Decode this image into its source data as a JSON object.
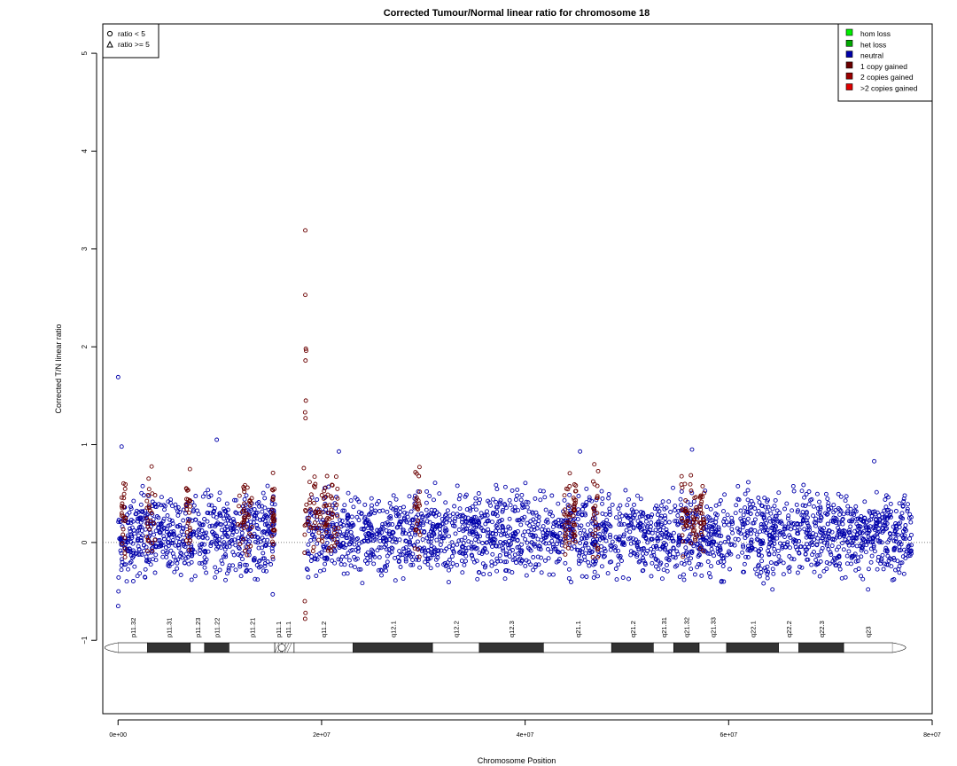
{
  "chart_data": {
    "type": "scatter",
    "title": "Corrected Tumour/Normal linear ratio for chromosome  18",
    "xlabel": "Chromosome Position",
    "ylabel": "Corrected T/N linear ratio",
    "xlim": [
      -1500000,
      80000000
    ],
    "ylim": [
      -1.75,
      5.3
    ],
    "xticks": [
      0,
      20000000,
      40000000,
      60000000,
      80000000
    ],
    "xtick_labels": [
      "0e+00",
      "2e+07",
      "4e+07",
      "6e+07",
      "8e+07"
    ],
    "yticks": [
      -1,
      0,
      1,
      2,
      3,
      4,
      5
    ],
    "ytick_labels": [
      "−1",
      "0",
      "1",
      "2",
      "3",
      "4",
      "5"
    ],
    "reference_line": 0,
    "grid": false,
    "shape_legend": {
      "placement": "top-left",
      "entries": [
        {
          "shape": "circle",
          "label": "ratio < 5"
        },
        {
          "shape": "triangle",
          "label": "ratio >= 5"
        }
      ]
    },
    "legend": {
      "placement": "top-right",
      "entries": [
        {
          "label": "hom loss",
          "color": "#00ee00"
        },
        {
          "label": "het loss",
          "color": "#00a800"
        },
        {
          "label": "neutral",
          "color": "#0000aa"
        },
        {
          "label": "1 copy gained",
          "color": "#6b0000"
        },
        {
          "label": "2 copies gained",
          "color": "#9b0000"
        },
        {
          "label": ">2 copies gained",
          "color": "#e00000"
        }
      ]
    },
    "data_range": [
      0,
      78000000
    ],
    "centromere_gap": [
      15400000,
      18500000
    ],
    "series": [
      {
        "name": "neutral",
        "color": "#0000aa",
        "band_center": 0.08,
        "band_spread": 0.2,
        "outliers": [
          [
            10000,
            1.69
          ],
          [
            350000,
            0.98
          ],
          [
            9700000,
            1.05
          ],
          [
            21700000,
            0.93
          ],
          [
            45400000,
            0.93
          ],
          [
            56400000,
            0.95
          ],
          [
            74300000,
            0.83
          ],
          [
            10000,
            -0.65
          ],
          [
            40000,
            -0.5
          ],
          [
            15200000,
            -0.53
          ],
          [
            64300000,
            -0.48
          ],
          [
            73700000,
            -0.48
          ]
        ]
      },
      {
        "name": "1 copy gained",
        "color": "#6b0000",
        "segments": [
          [
            350000,
            750000,
            0.9
          ],
          [
            2800000,
            3700000,
            0.9
          ],
          [
            6700000,
            7100000,
            0.75
          ],
          [
            11700000,
            13200000,
            0.85
          ],
          [
            15100000,
            15400000,
            0.8
          ],
          [
            18200000,
            21700000,
            0.9
          ],
          [
            29100000,
            29700000,
            0.85
          ],
          [
            43700000,
            44400000,
            0.8
          ],
          [
            44700000,
            45000000,
            0.7
          ],
          [
            46600000,
            47200000,
            0.85
          ],
          [
            55300000,
            56000000,
            0.85
          ],
          [
            56200000,
            56900000,
            0.8
          ],
          [
            57200000,
            57600000,
            0.8
          ]
        ],
        "highlights": [
          [
            18400000,
            3.19
          ],
          [
            18400000,
            2.53
          ],
          [
            18450000,
            1.98
          ],
          [
            18480000,
            1.96
          ],
          [
            18420000,
            1.86
          ],
          [
            18450000,
            1.45
          ],
          [
            18380000,
            1.33
          ],
          [
            18420000,
            1.27
          ],
          [
            18380000,
            -0.78
          ],
          [
            18420000,
            -0.72
          ],
          [
            18350000,
            -0.6
          ]
        ]
      }
    ],
    "ideogram": {
      "bands": [
        {
          "label": "p11.32",
          "start": 0,
          "end": 2900000,
          "stain": "gneg"
        },
        {
          "label": "p11.31",
          "start": 2900000,
          "end": 7100000,
          "stain": "gpos"
        },
        {
          "label": "p11.23",
          "start": 7100000,
          "end": 8500000,
          "stain": "gneg"
        },
        {
          "label": "p11.22",
          "start": 8500000,
          "end": 10900000,
          "stain": "gpos"
        },
        {
          "label": "p11.21",
          "start": 10900000,
          "end": 15400000,
          "stain": "gneg"
        },
        {
          "label": "p11.1",
          "start": 15400000,
          "end": 16100000,
          "stain": "acen"
        },
        {
          "label": "q11.1",
          "start": 16100000,
          "end": 17300000,
          "stain": "acen"
        },
        {
          "label": "q11.2",
          "start": 17300000,
          "end": 23100000,
          "stain": "gneg"
        },
        {
          "label": "q12.1",
          "start": 23100000,
          "end": 30900000,
          "stain": "gpos"
        },
        {
          "label": "q12.2",
          "start": 30900000,
          "end": 35500000,
          "stain": "gneg"
        },
        {
          "label": "q12.3",
          "start": 35500000,
          "end": 41800000,
          "stain": "gpos"
        },
        {
          "label": "q21.1",
          "start": 41800000,
          "end": 48500000,
          "stain": "gneg"
        },
        {
          "label": "q21.2",
          "start": 48500000,
          "end": 52600000,
          "stain": "gpos"
        },
        {
          "label": "q21.31",
          "start": 52600000,
          "end": 54600000,
          "stain": "gneg"
        },
        {
          "label": "q21.32",
          "start": 54600000,
          "end": 57100000,
          "stain": "gpos"
        },
        {
          "label": "q21.33",
          "start": 57100000,
          "end": 59800000,
          "stain": "gneg"
        },
        {
          "label": "q22.1",
          "start": 59800000,
          "end": 64900000,
          "stain": "gpos"
        },
        {
          "label": "q22.2",
          "start": 64900000,
          "end": 66900000,
          "stain": "gneg"
        },
        {
          "label": "q22.3",
          "start": 66900000,
          "end": 71300000,
          "stain": "gpos"
        },
        {
          "label": "q23",
          "start": 71300000,
          "end": 76100000,
          "stain": "gneg"
        }
      ]
    }
  }
}
